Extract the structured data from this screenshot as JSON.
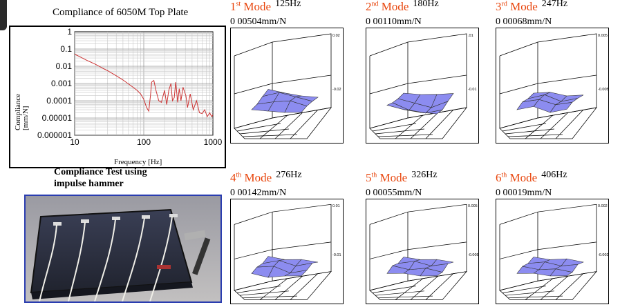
{
  "chart": {
    "title": "Compliance of 6050M Top Plate",
    "ylabel": "Compliance\n[mm/N]",
    "xlabel": "Frequency [Hz]",
    "yticks": [
      "1",
      "0.1",
      "0.01",
      "0.001",
      "0.0001",
      "0.00001",
      "0.000001"
    ],
    "xticks": [
      "10",
      "100",
      "1000"
    ],
    "line_color": "#cc3333"
  },
  "chart_data": {
    "type": "line",
    "title": "Compliance of 6050M Top Plate",
    "xlabel": "Frequency [Hz]",
    "ylabel": "Compliance [mm/N]",
    "xscale": "log",
    "yscale": "log",
    "xlim": [
      10,
      1000
    ],
    "ylim": [
      1e-06,
      1
    ],
    "grid": true,
    "series": [
      {
        "x": [
          10,
          12,
          15,
          20,
          25,
          30,
          40,
          50,
          60,
          70,
          80,
          90,
          100,
          110,
          118,
          125,
          130,
          140,
          150,
          165,
          180,
          200,
          215,
          230,
          247,
          260,
          276,
          290,
          310,
          326,
          345,
          370,
          406,
          430,
          470,
          520,
          580,
          640,
          700,
          760,
          830,
          900,
          960,
          1000
        ],
        "values": [
          0.05,
          0.035,
          0.022,
          0.013,
          0.008,
          0.0055,
          0.0028,
          0.0016,
          0.00095,
          0.0006,
          0.0004,
          0.00025,
          0.00012,
          4e-05,
          2.5e-05,
          0.0002,
          0.0012,
          0.0015,
          0.0004,
          0.0001,
          8e-05,
          0.0004,
          6e-05,
          0.0004,
          0.001,
          0.0001,
          0.00015,
          0.0012,
          8e-05,
          0.0005,
          0.0001,
          0.0006,
          0.0002,
          4e-05,
          0.00025,
          3e-05,
          0.0001,
          2e-05,
          1.8e-05,
          3e-05,
          1.2e-05,
          2e-05,
          1.2e-05,
          1.5e-05
        ]
      }
    ]
  },
  "caption": {
    "line1": "Compliance Test using",
    "line2": "impulse hammer"
  },
  "modes": [
    {
      "num": "1",
      "sup": "st",
      "word": "Mode",
      "freq": "125Hz",
      "compliance": "0 00504mm/N",
      "tick_top": "0.02",
      "tick_mid": "-0.02"
    },
    {
      "num": "2",
      "sup": "nd",
      "word": "Mode",
      "freq": "180Hz",
      "compliance": "0 00110mm/N",
      "tick_top": ".01",
      "tick_mid": "-0.01"
    },
    {
      "num": "3",
      "sup": "rd",
      "word": "Mode",
      "freq": "247Hz",
      "compliance": "0 00068mm/N",
      "tick_top": "0.005",
      "tick_mid": "-0.005"
    },
    {
      "num": "4",
      "sup": "th",
      "word": "Mode",
      "freq": "276Hz",
      "compliance": "0 00142mm/N",
      "tick_top": "0.01",
      "tick_mid": "-0.01"
    },
    {
      "num": "5",
      "sup": "th",
      "word": "Mode",
      "freq": "326Hz",
      "compliance": "0 00055mm/N",
      "tick_top": "0.005",
      "tick_mid": "-0.005"
    },
    {
      "num": "6",
      "sup": "th",
      "word": "Mode",
      "freq": "406Hz",
      "compliance": "0 00019mm/N",
      "tick_top": "0.002",
      "tick_mid": "-0.002"
    }
  ],
  "colors": {
    "mode_label": "#e8450c",
    "surface_fill": "#8c8cf0",
    "photo_border": "#2a3db0"
  }
}
